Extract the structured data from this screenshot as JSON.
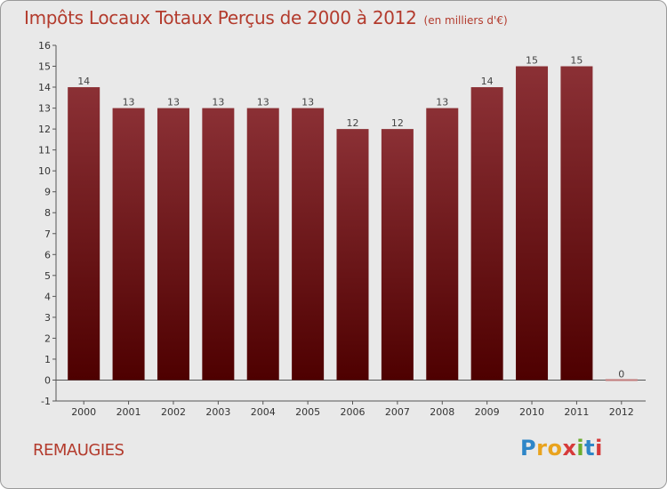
{
  "header": {
    "title": "Impôts Locaux Totaux Perçus de 2000 à 2012",
    "unit_note": "(en milliers d'€)"
  },
  "footer": {
    "commune": "REMAUGIES",
    "logo_letters": [
      "P",
      "r",
      "o",
      "x",
      "i",
      "t",
      "i"
    ],
    "logo_colors": [
      "#2e86c8",
      "#e9a31e",
      "#e9a31e",
      "#d63a3a",
      "#6cad2e",
      "#2e86c8",
      "#d63a3a"
    ]
  },
  "chart_data": {
    "type": "bar",
    "title": "Impôts Locaux Totaux Perçus de 2000 à 2012",
    "subtitle": "(en milliers d'€)",
    "xlabel": "",
    "ylabel": "",
    "categories": [
      "2000",
      "2001",
      "2002",
      "2003",
      "2004",
      "2005",
      "2006",
      "2007",
      "2008",
      "2009",
      "2010",
      "2011",
      "2012"
    ],
    "values": [
      14,
      13,
      13,
      13,
      13,
      13,
      12,
      12,
      13,
      14,
      15,
      15,
      0
    ],
    "ylim": [
      -1,
      16
    ],
    "yticks": [
      -1,
      0,
      1,
      2,
      3,
      4,
      5,
      6,
      7,
      8,
      9,
      10,
      11,
      12,
      13,
      14,
      15,
      16
    ],
    "grid": false,
    "legend": "none",
    "bar_color_top": "#8b3035",
    "bar_color_bottom": "#4e0000",
    "axis_color": "#555555"
  }
}
